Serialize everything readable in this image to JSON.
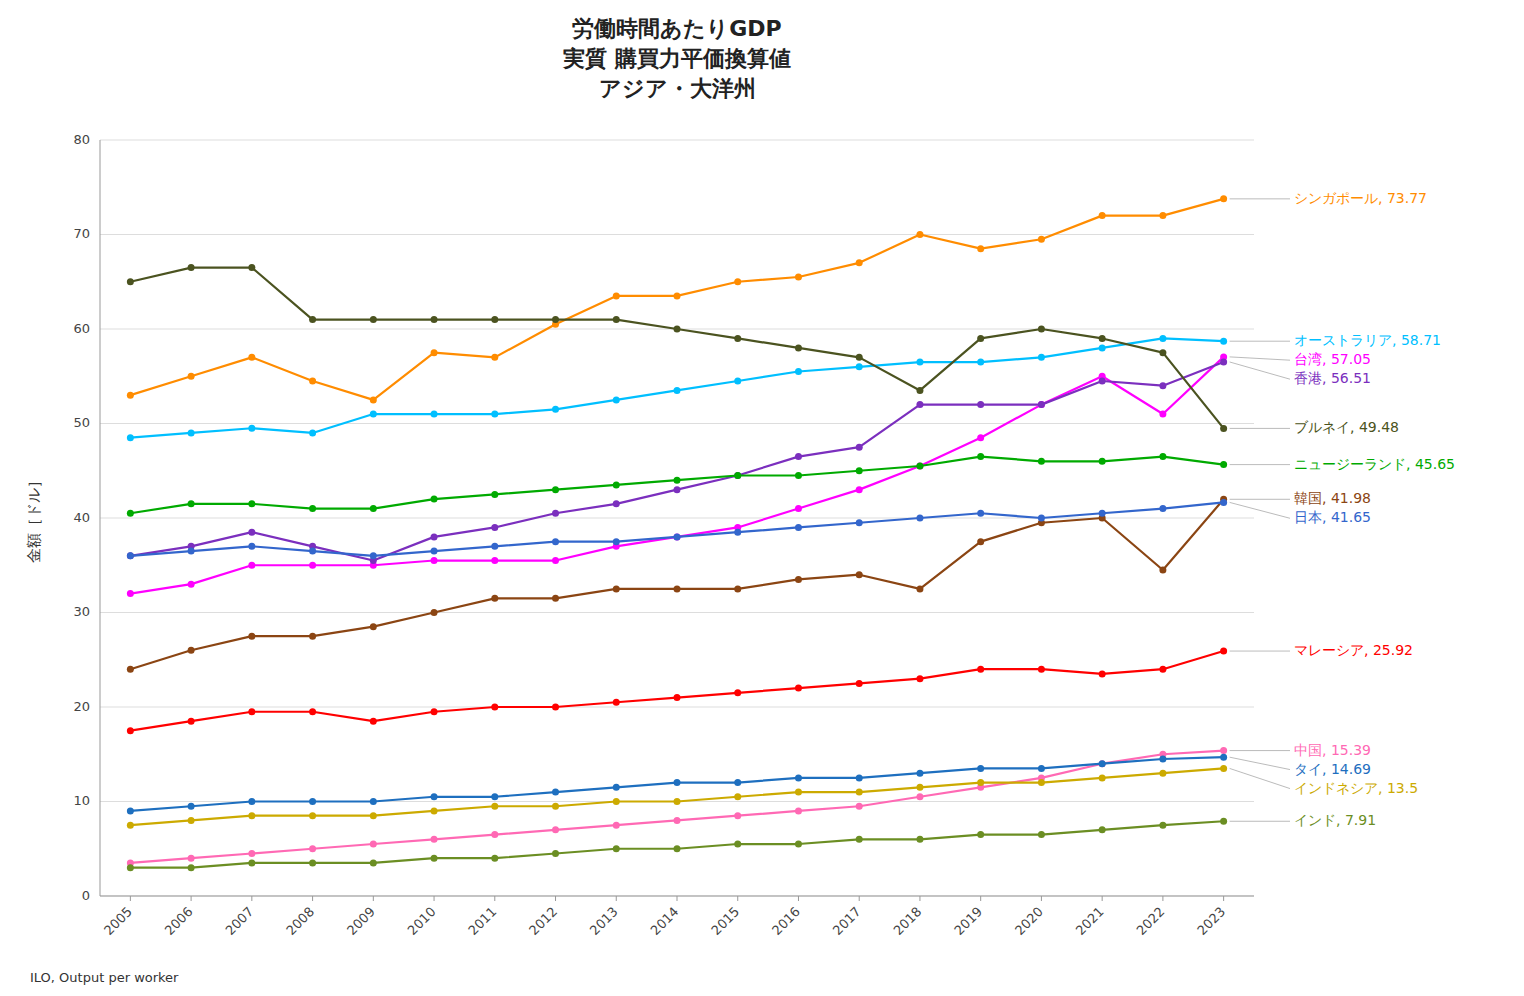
{
  "chart_data": {
    "type": "line",
    "title": "労働時間あたりGDP\n実質 購買力平価換算値\nアジア・大洋州",
    "y_label": "金額［ドル］",
    "source": "ILO, Output per worker",
    "x": [
      2005,
      2006,
      2007,
      2008,
      2009,
      2010,
      2011,
      2012,
      2013,
      2014,
      2015,
      2016,
      2017,
      2018,
      2019,
      2020,
      2021,
      2022,
      2023
    ],
    "xlim": [
      2004.5,
      2023.5
    ],
    "xticks": [
      2005,
      2006,
      2007,
      2008,
      2009,
      2010,
      2011,
      2012,
      2013,
      2014,
      2015,
      2016,
      2017,
      2018,
      2019,
      2020,
      2021,
      2022,
      2023
    ],
    "ylim": [
      0,
      80
    ],
    "yticks": [
      0,
      10,
      20,
      30,
      40,
      50,
      60,
      70,
      80
    ],
    "grid": true,
    "marker": "circle",
    "series": [
      {
        "name": "シンガポール, 73.77",
        "color": "#FF8C00",
        "values": [
          53.0,
          55.0,
          57.0,
          54.5,
          52.5,
          57.5,
          57.0,
          60.5,
          63.5,
          63.5,
          65.0,
          65.5,
          67.0,
          70.0,
          68.5,
          69.5,
          72.0,
          72.0,
          73.77
        ]
      },
      {
        "name": "オーストラリア, 58.71",
        "color": "#00BFFF",
        "values": [
          48.5,
          49.0,
          49.5,
          49.0,
          51.0,
          51.0,
          51.0,
          51.5,
          52.5,
          53.5,
          54.5,
          55.5,
          56.0,
          56.5,
          56.5,
          57.0,
          58.0,
          59.0,
          58.71
        ]
      },
      {
        "name": "台湾, 57.05",
        "color": "#FF00FF",
        "values": [
          32.0,
          33.0,
          35.0,
          35.0,
          35.0,
          35.5,
          35.5,
          35.5,
          37.0,
          38.0,
          39.0,
          41.0,
          43.0,
          45.5,
          48.5,
          52.0,
          55.0,
          51.0,
          57.05
        ]
      },
      {
        "name": "香港, 56.51",
        "color": "#7B2FBE",
        "values": [
          36.0,
          37.0,
          38.5,
          37.0,
          35.5,
          38.0,
          39.0,
          40.5,
          41.5,
          43.0,
          44.5,
          46.5,
          47.5,
          52.0,
          52.0,
          52.0,
          54.5,
          54.0,
          56.51
        ]
      },
      {
        "name": "ブルネイ, 49.48",
        "color": "#4B5320",
        "values": [
          65.0,
          66.5,
          66.5,
          61.0,
          61.0,
          61.0,
          61.0,
          61.0,
          61.0,
          60.0,
          59.0,
          58.0,
          57.0,
          53.5,
          59.0,
          60.0,
          59.0,
          57.5,
          49.48
        ]
      },
      {
        "name": "ニュージーランド, 45.65",
        "color": "#00AA00",
        "values": [
          40.5,
          41.5,
          41.5,
          41.0,
          41.0,
          42.0,
          42.5,
          43.0,
          43.5,
          44.0,
          44.5,
          44.5,
          45.0,
          45.5,
          46.5,
          46.0,
          46.0,
          46.5,
          45.65
        ]
      },
      {
        "name": "韓国, 41.98",
        "color": "#8B4513",
        "values": [
          24.0,
          26.0,
          27.5,
          27.5,
          28.5,
          30.0,
          31.5,
          31.5,
          32.5,
          32.5,
          32.5,
          33.5,
          34.0,
          32.5,
          37.5,
          39.5,
          40.0,
          34.5,
          41.98
        ]
      },
      {
        "name": "日本, 41.65",
        "color": "#3366CC",
        "values": [
          36.0,
          36.5,
          37.0,
          36.5,
          36.0,
          36.5,
          37.0,
          37.5,
          37.5,
          38.0,
          38.5,
          39.0,
          39.5,
          40.0,
          40.5,
          40.0,
          40.5,
          41.0,
          41.65
        ]
      },
      {
        "name": "マレーシア, 25.92",
        "color": "#FF0000",
        "values": [
          17.5,
          18.5,
          19.5,
          19.5,
          18.5,
          19.5,
          20.0,
          20.0,
          20.5,
          21.0,
          21.5,
          22.0,
          22.5,
          23.0,
          24.0,
          24.0,
          23.5,
          24.0,
          25.92
        ]
      },
      {
        "name": "中国, 15.39",
        "color": "#FF69B4",
        "values": [
          3.5,
          4.0,
          4.5,
          5.0,
          5.5,
          6.0,
          6.5,
          7.0,
          7.5,
          8.0,
          8.5,
          9.0,
          9.5,
          10.5,
          11.5,
          12.5,
          14.0,
          15.0,
          15.39
        ]
      },
      {
        "name": "タイ, 14.69",
        "color": "#1E6FBF",
        "values": [
          9.0,
          9.5,
          10.0,
          10.0,
          10.0,
          10.5,
          10.5,
          11.0,
          11.5,
          12.0,
          12.0,
          12.5,
          12.5,
          13.0,
          13.5,
          13.5,
          14.0,
          14.5,
          14.69
        ]
      },
      {
        "name": "インドネシア, 13.5",
        "color": "#CCAA00",
        "values": [
          7.5,
          8.0,
          8.5,
          8.5,
          8.5,
          9.0,
          9.5,
          9.5,
          10.0,
          10.0,
          10.5,
          11.0,
          11.0,
          11.5,
          12.0,
          12.0,
          12.5,
          13.0,
          13.5
        ]
      },
      {
        "name": "インド, 7.91",
        "color": "#6B8E23",
        "values": [
          3.0,
          3.0,
          3.5,
          3.5,
          3.5,
          4.0,
          4.0,
          4.5,
          5.0,
          5.0,
          5.5,
          5.5,
          6.0,
          6.0,
          6.5,
          6.5,
          7.0,
          7.5,
          7.91
        ]
      }
    ]
  }
}
